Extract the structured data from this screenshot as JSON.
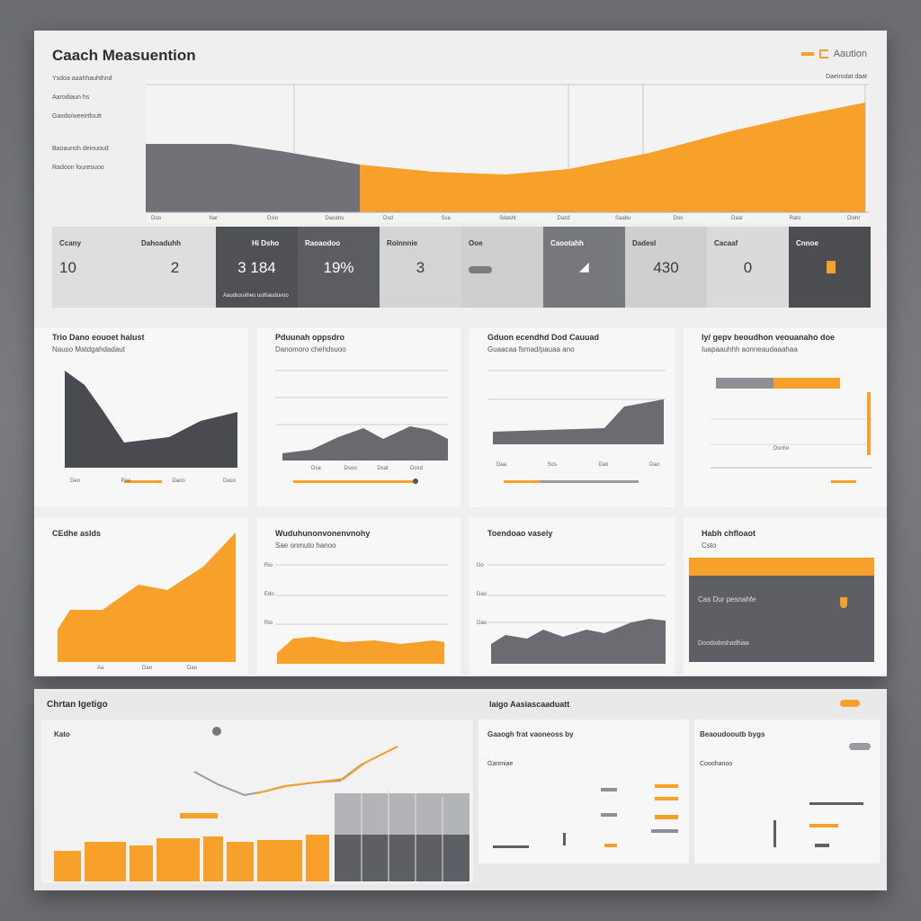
{
  "header": {
    "title": "Caach Measuention",
    "brand": "Aaution"
  },
  "sidebar": {
    "items": [
      "Ysdoa aaahhauhthnd",
      "Aarodiaun hs",
      "Gaxdo/weeirtfoutt",
      "Baoaunoh deinuoud",
      "Radoon fouresuoo"
    ]
  },
  "main_chart": {
    "legend": "Daeirodat daat",
    "tick_labels": [
      "Doo",
      "Nar",
      "Dsio",
      "Daoahu",
      "Dod",
      "Ssa",
      "Sdasht",
      "Dazd",
      "Saabu",
      "Doo",
      "Daar",
      "Rato",
      "Dinhr"
    ],
    "series": [
      {
        "name": "Grey",
        "color": "#707277",
        "values": [
          45,
          44,
          42,
          34,
          28
        ]
      },
      {
        "name": "Orange",
        "color": "#f7a12b",
        "values": [
          28,
          26,
          27,
          31,
          40,
          52,
          62,
          74
        ]
      }
    ]
  },
  "stats": [
    {
      "label": "Ccany",
      "value": "10",
      "note": "Aaudiusuiheu uuthauduvoo"
    },
    {
      "label": "Dahoaduhh",
      "value": "2",
      "note": ""
    },
    {
      "label": "Hi Dsho",
      "value": "3 184",
      "note": ""
    },
    {
      "label": "Raoaodoo",
      "value": "19%",
      "note": ""
    },
    {
      "label": "Roinnnie",
      "value": "3",
      "note": ""
    },
    {
      "label": "Ooe",
      "value": "",
      "note": ""
    },
    {
      "label": "Caootahh",
      "value": "",
      "note": ""
    },
    {
      "label": "Dadesl",
      "value": "430",
      "note": ""
    },
    {
      "label": "Cacaaf",
      "value": "0",
      "note": ""
    },
    {
      "label": "Cnnoe",
      "value": "",
      "note": ""
    }
  ],
  "panels_row1": [
    {
      "title": "Trio Dano eouoet halust",
      "sub": "Nauso Matdgahdadaut",
      "color": "#4a4b50",
      "axis": [
        "Deo",
        "Paa",
        "Dano",
        "Daso"
      ]
    },
    {
      "title": "Pduunah oppsdro",
      "sub": "Danomoro chehdsuoo",
      "color": "#686a70",
      "axis": [
        "Dsa",
        "Dsoo",
        "Dsat",
        "Dosd"
      ]
    },
    {
      "title": "Gduon ecendhd Dod Cauuad",
      "sub": "Guaacaa fsmad/pauaa ano",
      "color": "#6a6c72",
      "axis": [
        "Daa",
        "Sos",
        "Dao",
        "Dao"
      ]
    },
    {
      "title": "Iy/ gepv beoudhon veouanaho doe",
      "sub": "Iuapaauhhh aonneaudaaahaa",
      "color": "#f7a12b",
      "axis": [
        "Dsnho"
      ]
    }
  ],
  "panels_row2": [
    {
      "title": "CEdhe aslds",
      "sub": "",
      "color": "#f7a12b",
      "axis": [
        "Aa",
        "Dao",
        "Dao"
      ]
    },
    {
      "title": "Wuduhunonvonenvnohy",
      "sub": "Sae onmuto hanoo",
      "color": "#f7a12b",
      "axis": [
        "Rio",
        "Edo",
        "Rio"
      ]
    },
    {
      "title": "Toendoao vaseiy",
      "sub": "",
      "color": "#6a6c72",
      "axis": [
        "Do",
        "Dao",
        "Dao"
      ]
    },
    {
      "title": "Habh chfloaot",
      "sub": "Csto",
      "color": "#5d5f64",
      "inner_label": "Cas Dur pesnahfe",
      "inner_note": "Doododoshadhiaa"
    }
  ],
  "bottom": {
    "left_title": "Chrtan Igetigo",
    "left_sub": "Kato",
    "right_title": "Iaigo Aasiascaaduatt",
    "card1_title": "Gaaogh frat vaoneoss by",
    "card1_sub": "Ganmiae",
    "card2_title": "Beaoudooutb bygs",
    "card2_sub": "Cooohanoo"
  }
}
